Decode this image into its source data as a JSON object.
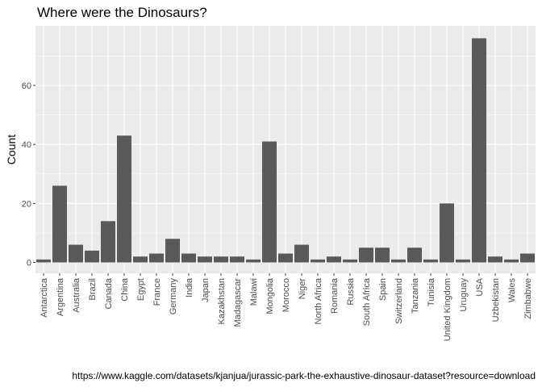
{
  "title": "Where were the Dinosaurs?",
  "caption": "https://www.kaggle.com/datasets/kjanjua/jurassic-park-the-exhaustive-dinosaur-dataset?resource=download",
  "colors": {
    "panel": "#ebebeb",
    "bar": "#595959",
    "grid": "#ffffff",
    "text": "#4d4d4d"
  },
  "chart_data": {
    "type": "bar",
    "title": "Where were the Dinosaurs?",
    "xlabel": "",
    "ylabel": "Count",
    "categories": [
      "Antarctica",
      "Argentina",
      "Australia",
      "Brazil",
      "Canada",
      "China",
      "Egypt",
      "France",
      "Germany",
      "India",
      "Japan",
      "Kazakhstan",
      "Madagascar",
      "Malawi",
      "Mongolia",
      "Morocco",
      "Niger",
      "North Africa",
      "Romania",
      "Russia",
      "South Africa",
      "Spain",
      "Switzerland",
      "Tanzania",
      "Tunisia",
      "United Kingdom",
      "Uruguay",
      "USA",
      "Uzbekistan",
      "Wales",
      "Zimbabwe"
    ],
    "values": [
      1,
      26,
      6,
      4,
      14,
      43,
      2,
      3,
      8,
      3,
      2,
      2,
      2,
      1,
      41,
      3,
      6,
      1,
      2,
      1,
      5,
      5,
      1,
      5,
      1,
      20,
      1,
      76,
      2,
      1,
      3
    ],
    "yticks": [
      0,
      20,
      40,
      60
    ],
    "ylim": [
      0,
      80
    ],
    "grid": true
  }
}
